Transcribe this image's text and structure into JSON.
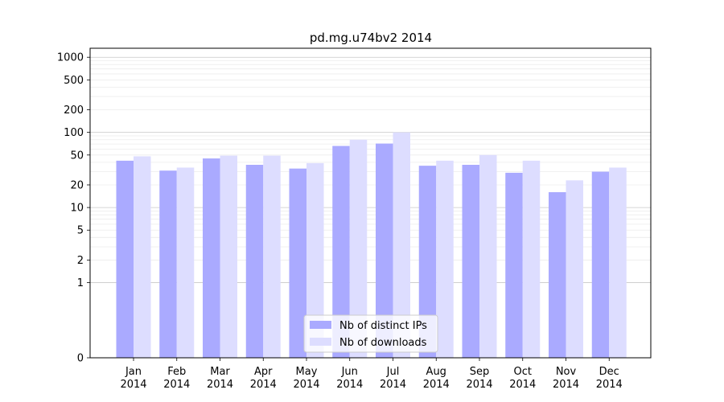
{
  "chart_data": {
    "type": "bar",
    "title": "pd.mg.u74bv2 2014",
    "xlabel": "",
    "ylabel": "",
    "y_scale": "symlog",
    "ylim": [
      0,
      1000
    ],
    "grid": "horizontal",
    "legend_position": "lower-center",
    "categories": [
      [
        "Jan",
        "2014"
      ],
      [
        "Feb",
        "2014"
      ],
      [
        "Mar",
        "2014"
      ],
      [
        "Apr",
        "2014"
      ],
      [
        "May",
        "2014"
      ],
      [
        "Jun",
        "2014"
      ],
      [
        "Jul",
        "2014"
      ],
      [
        "Aug",
        "2014"
      ],
      [
        "Sep",
        "2014"
      ],
      [
        "Oct",
        "2014"
      ],
      [
        "Nov",
        "2014"
      ],
      [
        "Dec",
        "2014"
      ]
    ],
    "y_ticks": [
      0,
      1,
      2,
      5,
      10,
      20,
      50,
      100,
      200,
      500,
      1000
    ],
    "series": [
      {
        "name": "Nb of distinct IPs",
        "color": "#aaaaff",
        "values": [
          42,
          31,
          45,
          37,
          33,
          66,
          71,
          36,
          37,
          29,
          16,
          30
        ]
      },
      {
        "name": "Nb of downloads",
        "color": "#ddddff",
        "values": [
          48,
          34,
          49,
          49,
          39,
          80,
          100,
          42,
          50,
          42,
          23,
          34
        ]
      }
    ]
  }
}
